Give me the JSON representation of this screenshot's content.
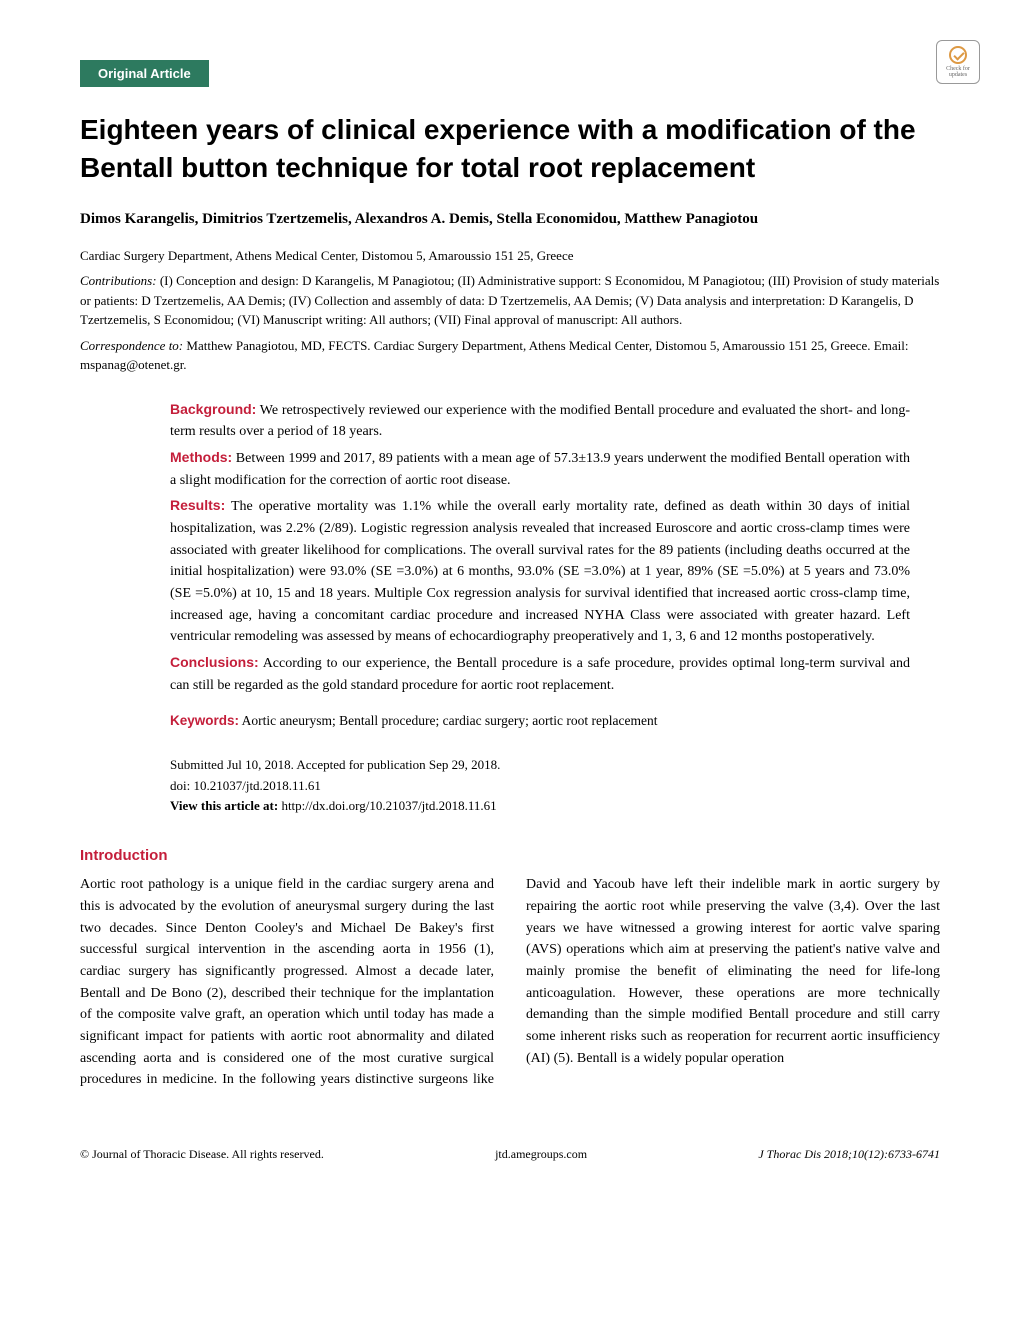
{
  "colors": {
    "badge_bg": "#2d7a5f",
    "badge_text": "#ffffff",
    "accent": "#c41e3a",
    "body_text": "#000000",
    "page_bg": "#ffffff"
  },
  "typography": {
    "title_font": "Arial, Helvetica, sans-serif",
    "title_size_pt": 21,
    "body_font": "Georgia, Times New Roman, serif",
    "body_size_pt": 10.5,
    "abstract_size_pt": 10.5
  },
  "check_badge": {
    "line1": "Check for",
    "line2": "updates"
  },
  "article_type": "Original Article",
  "title": "Eighteen years of clinical experience with a modification of the Bentall button technique for total root replacement",
  "authors": "Dimos Karangelis, Dimitrios Tzertzemelis, Alexandros A. Demis, Stella Economidou, Matthew Panagiotou",
  "affiliation": "Cardiac Surgery Department, Athens Medical Center, Distomou 5, Amaroussio 151 25, Greece",
  "contributions": {
    "label": "Contributions:",
    "text": " (I) Conception and design: D Karangelis, M Panagiotou; (II) Administrative support: S Economidou, M Panagiotou; (III) Provision of study materials or patients: D Tzertzemelis, AA Demis; (IV) Collection and assembly of data: D Tzertzemelis, AA Demis; (V) Data analysis and interpretation: D Karangelis, D Tzertzemelis, S Economidou; (VI) Manuscript writing: All authors; (VII) Final approval of manuscript: All authors."
  },
  "correspondence": {
    "label": "Correspondence to:",
    "text": " Matthew Panagiotou, MD, FECTS. Cardiac Surgery Department, Athens Medical Center, Distomou 5, Amaroussio 151 25, Greece. Email: mspanag@otenet.gr."
  },
  "abstract": {
    "background": {
      "heading": "Background:",
      "text": " We retrospectively reviewed our experience with the modified Bentall procedure and evaluated the short- and long-term results over a period of 18 years."
    },
    "methods": {
      "heading": "Methods:",
      "text": " Between 1999 and 2017, 89 patients with a mean age of 57.3±13.9 years underwent the modified Bentall operation with a slight modification for the correction of aortic root disease."
    },
    "results": {
      "heading": "Results:",
      "text": " The operative mortality was 1.1% while the overall early mortality rate, defined as death within 30 days of initial hospitalization, was 2.2% (2/89). Logistic regression analysis revealed that increased Euroscore and aortic cross-clamp times were associated with greater likelihood for complications. The overall survival rates for the 89 patients (including deaths occurred at the initial hospitalization) were 93.0% (SE =3.0%) at 6 months, 93.0% (SE =3.0%) at 1 year, 89% (SE =5.0%) at 5 years and 73.0% (SE =5.0%) at 10, 15 and 18 years. Multiple Cox regression analysis for survival identified that increased aortic cross-clamp time, increased age, having a concomitant cardiac procedure and increased NYHA Class were associated with greater hazard. Left ventricular remodeling was assessed by means of echocardiography preoperatively and 1, 3, 6 and 12 months postoperatively."
    },
    "conclusions": {
      "heading": "Conclusions:",
      "text": " According to our experience, the Bentall procedure is a safe procedure, provides optimal long-term survival and can still be regarded as the gold standard procedure for aortic root replacement."
    }
  },
  "keywords": {
    "heading": "Keywords:",
    "text": " Aortic aneurysm; Bentall procedure; cardiac surgery; aortic root replacement"
  },
  "meta": {
    "submitted": "Submitted Jul 10, 2018. Accepted for publication Sep 29, 2018.",
    "doi": "doi: 10.21037/jtd.2018.11.61",
    "view_label": "View this article at:",
    "view_url": " http://dx.doi.org/10.21037/jtd.2018.11.61"
  },
  "intro": {
    "heading": "Introduction",
    "body": "Aortic root pathology is a unique field in the cardiac surgery arena and this is advocated by the evolution of aneurysmal surgery during the last two decades. Since Denton Cooley's and Michael De Bakey's first successful surgical intervention in the ascending aorta in 1956 (1), cardiac surgery has significantly progressed. Almost a decade later, Bentall and De Bono (2), described their technique for the implantation of the composite valve graft, an operation which until today has made a significant impact for patients with aortic root abnormality and dilated ascending aorta and is considered one of the most curative surgical procedures in medicine. In the following years distinctive surgeons like David and Yacoub have left their indelible mark in aortic surgery by repairing the aortic root while preserving the valve (3,4). Over the last years we have witnessed a growing interest for aortic valve sparing (AVS) operations which aim at preserving the patient's native valve and mainly promise the benefit of eliminating the need for life-long anticoagulation. However, these operations are more technically demanding than the simple modified Bentall procedure and still carry some inherent risks such as reoperation for recurrent aortic insufficiency (AI) (5). Bentall is a widely popular operation"
  },
  "footer": {
    "left": "© Journal of Thoracic Disease. All rights reserved.",
    "center": "jtd.amegroups.com",
    "right": "J Thorac Dis 2018;10(12):6733-6741"
  }
}
